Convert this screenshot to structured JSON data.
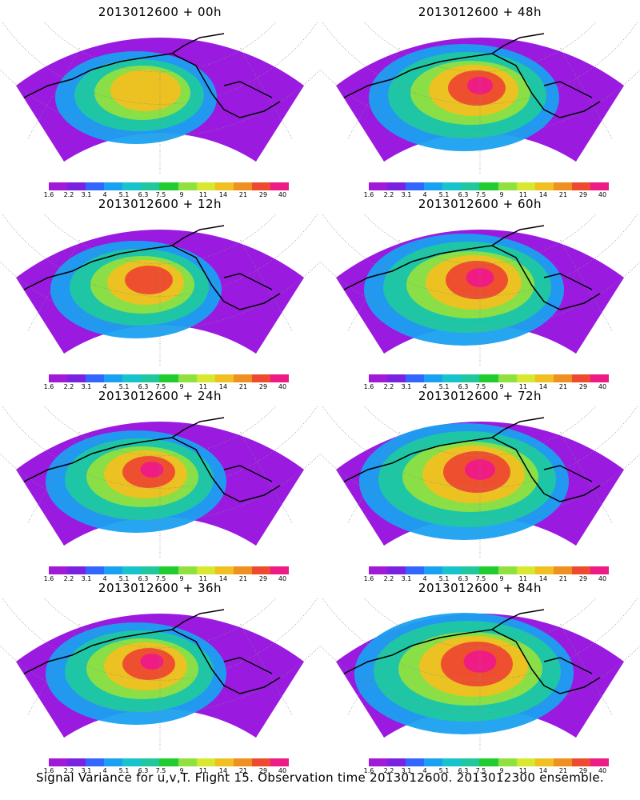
{
  "figure": {
    "caption": "Signal Variance for u,v,T. Flight 15. Observation time 2013012600. 2013012300 ensemble."
  },
  "colorbar": {
    "ticks": [
      "1.6",
      "2.2",
      "3.1",
      "4",
      "5.1",
      "6.3",
      "7.5",
      "9",
      "11",
      "14",
      "21",
      "29",
      "40"
    ],
    "colors": [
      "#a01ad8",
      "#7b22e0",
      "#3366ff",
      "#1aa0f0",
      "#18c4cc",
      "#20c8a0",
      "#20cc30",
      "#90e040",
      "#d8e830",
      "#f0c020",
      "#f09020",
      "#ee4a30",
      "#ee1a88"
    ]
  },
  "panels": [
    {
      "title": "2013012600 + 00h",
      "intensity": 1
    },
    {
      "title": "2013012600 + 48h",
      "intensity": 4
    },
    {
      "title": "2013012600 + 12h",
      "intensity": 2
    },
    {
      "title": "2013012600 + 60h",
      "intensity": 5
    },
    {
      "title": "2013012600 + 24h",
      "intensity": 3
    },
    {
      "title": "2013012600 + 72h",
      "intensity": 6
    },
    {
      "title": "2013012600 + 36h",
      "intensity": 3
    },
    {
      "title": "2013012600 + 84h",
      "intensity": 7
    }
  ]
}
